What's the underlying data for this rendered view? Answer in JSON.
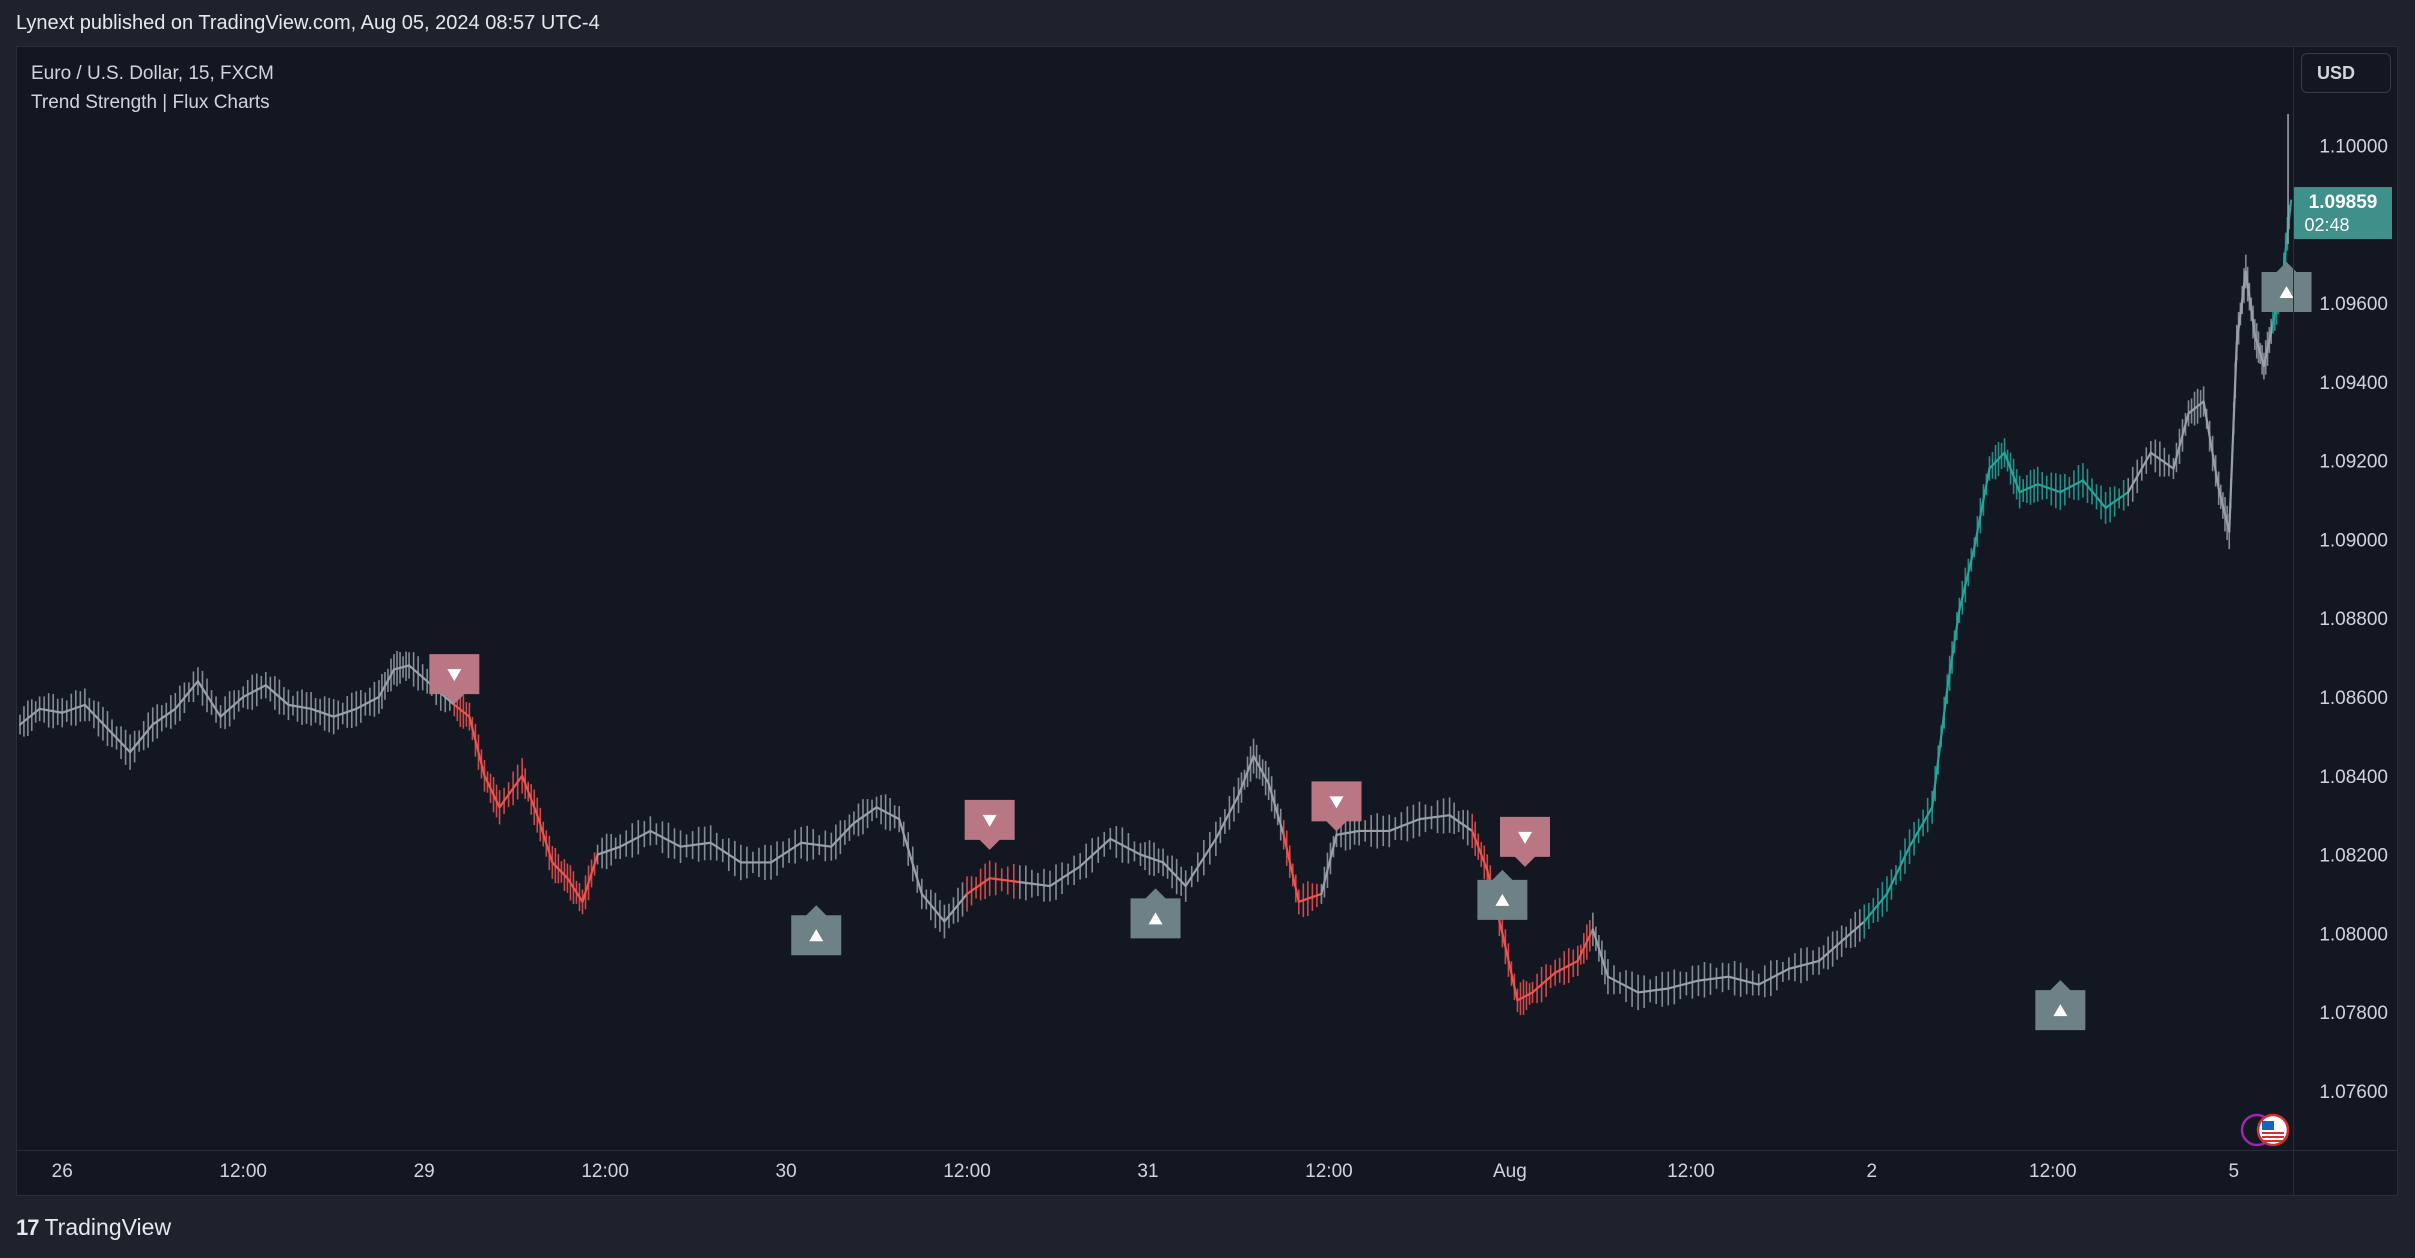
{
  "header": {
    "publisher": "Lynext published on TradingView.com, Aug 05, 2024 08:57 UTC-4"
  },
  "legend": {
    "symbol": "Euro / U.S. Dollar, 15, FXCM",
    "indicator": "Trend Strength | Flux Charts"
  },
  "currency_button": "USD",
  "footer": {
    "logo_icon": "tradingview-logo-icon",
    "brand": "TradingView"
  },
  "colors": {
    "background": "#131722",
    "panel": "#1e222d",
    "text": "#d1d4dc",
    "bull": "#26a69a",
    "bear": "#ef5350",
    "neutral": "#9aa0a8",
    "bear_marker": "#b87782",
    "bull_marker": "#6d8187",
    "price_label": "#3f8f8b"
  },
  "icons": {
    "marker_bull": "triangle-up-icon",
    "marker_bear": "triangle-down-icon",
    "event": "us-flag-icon"
  },
  "chart_data": {
    "type": "line",
    "symbol": "EURUSD",
    "timeframe": "15",
    "x_unit": "hours since Jul 26 00:00",
    "ylim": [
      1.0745,
      1.1025
    ],
    "y_ticks": [
      1.076,
      1.078,
      1.08,
      1.082,
      1.084,
      1.086,
      1.088,
      1.09,
      1.092,
      1.094,
      1.096,
      1.098,
      1.1,
      1.102
    ],
    "y_tick_labels": [
      "1.07600",
      "1.07800",
      "1.08000",
      "1.08200",
      "1.08400",
      "1.08600",
      "1.08800",
      "1.09000",
      "1.09200",
      "1.09400",
      "1.09600",
      "1.09800",
      "1.10000",
      "1.10200"
    ],
    "x_tick_labels": [
      "26",
      "12:00",
      "29",
      "12:00",
      "30",
      "12:00",
      "31",
      "12:00",
      "Aug",
      "12:00",
      "2",
      "12:00",
      "5"
    ],
    "x_tick_positions": [
      0,
      12,
      24,
      36,
      48,
      60,
      72,
      84,
      96,
      108,
      120,
      132,
      144
    ],
    "x_range": [
      -3,
      147
    ],
    "series": [
      {
        "name": "EURUSD",
        "points": [
          [
            -2.8,
            1.0853,
            "n"
          ],
          [
            -1.5,
            1.0857,
            "n"
          ],
          [
            0,
            1.0856,
            "n"
          ],
          [
            1.5,
            1.0858,
            "n"
          ],
          [
            3,
            1.0852,
            "n"
          ],
          [
            4.5,
            1.0846,
            "n"
          ],
          [
            6,
            1.0853,
            "n"
          ],
          [
            7.5,
            1.0857,
            "n"
          ],
          [
            9,
            1.0864,
            "n"
          ],
          [
            10.5,
            1.0855,
            "n"
          ],
          [
            12,
            1.086,
            "n"
          ],
          [
            13.5,
            1.0863,
            "n"
          ],
          [
            15,
            1.0858,
            "n"
          ],
          [
            16.5,
            1.0857,
            "n"
          ],
          [
            18,
            1.0855,
            "n"
          ],
          [
            19.5,
            1.0857,
            "n"
          ],
          [
            21,
            1.086,
            "n"
          ],
          [
            22,
            1.0867,
            "n"
          ],
          [
            23,
            1.0868,
            "n"
          ],
          [
            24.5,
            1.0863,
            "n"
          ],
          [
            26,
            1.0858,
            "n"
          ],
          [
            27,
            1.0855,
            "r"
          ],
          [
            28,
            1.084,
            "r"
          ],
          [
            29,
            1.0832,
            "r"
          ],
          [
            30.5,
            1.084,
            "r"
          ],
          [
            31.5,
            1.083,
            "r"
          ],
          [
            32.5,
            1.0818,
            "r"
          ],
          [
            33.5,
            1.0814,
            "r"
          ],
          [
            34.5,
            1.0808,
            "r"
          ],
          [
            35.5,
            1.082,
            "r"
          ],
          [
            37,
            1.0822,
            "n"
          ],
          [
            39,
            1.0826,
            "n"
          ],
          [
            41,
            1.0822,
            "n"
          ],
          [
            43,
            1.0823,
            "n"
          ],
          [
            45,
            1.0818,
            "n"
          ],
          [
            47,
            1.0818,
            "n"
          ],
          [
            49,
            1.0823,
            "n"
          ],
          [
            51,
            1.0822,
            "n"
          ],
          [
            52.5,
            1.0828,
            "n"
          ],
          [
            54,
            1.0832,
            "n"
          ],
          [
            55.5,
            1.0829,
            "n"
          ],
          [
            57,
            1.081,
            "n"
          ],
          [
            58.5,
            1.0803,
            "n"
          ],
          [
            60,
            1.081,
            "n"
          ],
          [
            61.5,
            1.0814,
            "r"
          ],
          [
            63.5,
            1.0813,
            "r"
          ],
          [
            65.5,
            1.0812,
            "n"
          ],
          [
            67.5,
            1.0817,
            "n"
          ],
          [
            69.5,
            1.0824,
            "n"
          ],
          [
            71.5,
            1.082,
            "n"
          ],
          [
            73,
            1.0818,
            "n"
          ],
          [
            74.5,
            1.0812,
            "n"
          ],
          [
            76.5,
            1.0824,
            "n"
          ],
          [
            78,
            1.0835,
            "n"
          ],
          [
            79,
            1.0845,
            "n"
          ],
          [
            80,
            1.0838,
            "n"
          ],
          [
            81,
            1.0825,
            "n"
          ],
          [
            82,
            1.0808,
            "r"
          ],
          [
            83.5,
            1.081,
            "r"
          ],
          [
            84.5,
            1.0825,
            "n"
          ],
          [
            86,
            1.0826,
            "n"
          ],
          [
            88,
            1.0826,
            "n"
          ],
          [
            90,
            1.0829,
            "n"
          ],
          [
            92,
            1.083,
            "n"
          ],
          [
            93.5,
            1.0826,
            "n"
          ],
          [
            94.5,
            1.0816,
            "r"
          ],
          [
            95.5,
            1.08,
            "r"
          ],
          [
            96.5,
            1.0783,
            "r"
          ],
          [
            97.5,
            1.0785,
            "r"
          ],
          [
            99,
            1.079,
            "r"
          ],
          [
            100.5,
            1.0793,
            "r"
          ],
          [
            101.5,
            1.0801,
            "r"
          ],
          [
            102.5,
            1.0789,
            "n"
          ],
          [
            104.5,
            1.0785,
            "n"
          ],
          [
            106.5,
            1.0786,
            "n"
          ],
          [
            108.5,
            1.0788,
            "n"
          ],
          [
            110.5,
            1.0789,
            "n"
          ],
          [
            112.5,
            1.0787,
            "n"
          ],
          [
            114.5,
            1.0791,
            "n"
          ],
          [
            116.5,
            1.0793,
            "n"
          ],
          [
            118,
            1.0798,
            "n"
          ],
          [
            119.5,
            1.0803,
            "n"
          ],
          [
            121,
            1.081,
            "g"
          ],
          [
            122.5,
            1.0822,
            "g"
          ],
          [
            124,
            1.0832,
            "g"
          ],
          [
            125,
            1.0862,
            "g"
          ],
          [
            125.8,
            1.0882,
            "g"
          ],
          [
            126.8,
            1.0898,
            "g"
          ],
          [
            127.8,
            1.0918,
            "g"
          ],
          [
            128.8,
            1.0922,
            "g"
          ],
          [
            129.8,
            1.0912,
            "g"
          ],
          [
            131,
            1.0914,
            "g"
          ],
          [
            132.5,
            1.0912,
            "g"
          ],
          [
            134,
            1.0915,
            "g"
          ],
          [
            135.5,
            1.0908,
            "g"
          ],
          [
            137,
            1.0912,
            "g"
          ],
          [
            138.5,
            1.0922,
            "n"
          ],
          [
            140,
            1.0918,
            "n"
          ],
          [
            141,
            1.0932,
            "n"
          ],
          [
            142,
            1.0935,
            "n"
          ],
          [
            143,
            1.0913,
            "n"
          ],
          [
            143.7,
            1.0902,
            "n"
          ],
          [
            144.2,
            1.095,
            "n"
          ],
          [
            144.8,
            1.0968,
            "n"
          ],
          [
            145.4,
            1.0952,
            "n"
          ],
          [
            146,
            1.0944,
            "n"
          ],
          [
            146.6,
            1.0955,
            "n"
          ],
          [
            147.2,
            1.0965,
            "g"
          ],
          [
            147.8,
            1.0986,
            "g"
          ]
        ]
      }
    ],
    "markers": [
      {
        "x": 26,
        "y": 1.08658,
        "direction": "down"
      },
      {
        "x": 50,
        "y": 1.07995,
        "direction": "up"
      },
      {
        "x": 61.5,
        "y": 1.08288,
        "direction": "down"
      },
      {
        "x": 72.5,
        "y": 1.08038,
        "direction": "up"
      },
      {
        "x": 84.5,
        "y": 1.08335,
        "direction": "down"
      },
      {
        "x": 95.5,
        "y": 1.08085,
        "direction": "up"
      },
      {
        "x": 97,
        "y": 1.08245,
        "direction": "down"
      },
      {
        "x": 132.5,
        "y": 1.07805,
        "direction": "up"
      },
      {
        "x": 147.5,
        "y": 1.09628,
        "direction": "up"
      }
    ],
    "last_price_label": {
      "price": "1.09859",
      "countdown": "02:48",
      "value": 1.09859
    },
    "grid": false,
    "legend_placement": "top-left"
  }
}
